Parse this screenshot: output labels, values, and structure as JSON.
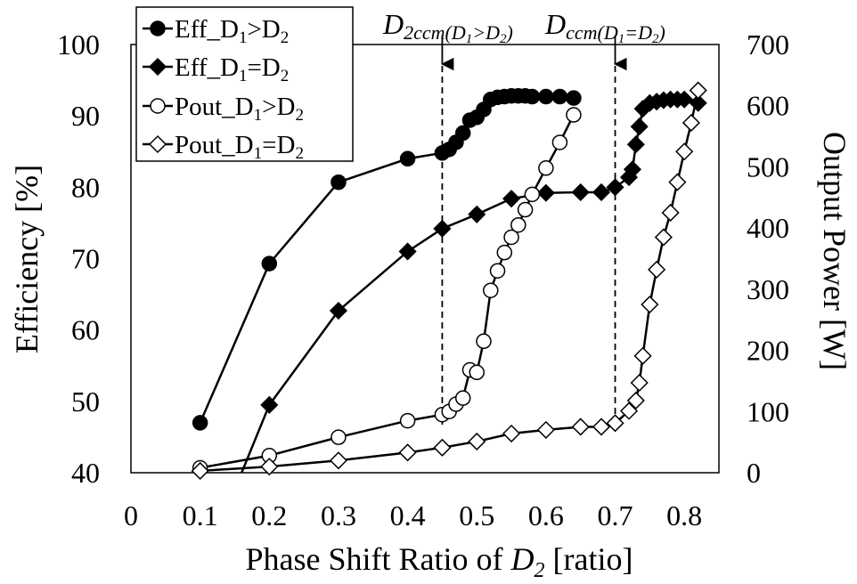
{
  "chart_data": {
    "type": "line",
    "xlabel": {
      "text": "Phase Shift Ratio of ",
      "var": "D",
      "sub": "2",
      "tail": " [ratio]"
    },
    "ylabel_left": "Efficiency [%]",
    "ylabel_right": "Output Power [W]",
    "xlim": [
      0,
      0.85
    ],
    "ylim_left": [
      40,
      100
    ],
    "ylim_right": [
      0,
      700
    ],
    "x_ticks": [
      "0",
      "0.1",
      "0.2",
      "0.3",
      "0.4",
      "0.5",
      "0.6",
      "0.7",
      "0.8"
    ],
    "y_left_ticks": [
      "40",
      "50",
      "60",
      "70",
      "80",
      "90",
      "100"
    ],
    "y_right_ticks": [
      "0",
      "100",
      "200",
      "300",
      "400",
      "500",
      "600",
      "700"
    ],
    "grid": false,
    "legend_position": "top-left",
    "series": [
      {
        "name": {
          "pre": "Eff_D",
          "s1": "1",
          "mid": ">D",
          "s2": "2"
        },
        "axis": "left",
        "marker": "circle",
        "filled": true,
        "x": [
          0.1,
          0.2,
          0.3,
          0.4,
          0.45,
          0.46,
          0.47,
          0.48,
          0.49,
          0.5,
          0.51,
          0.52,
          0.53,
          0.54,
          0.55,
          0.56,
          0.57,
          0.58,
          0.6,
          0.62,
          0.64
        ],
        "values": [
          47,
          69.3,
          80.7,
          84,
          84.8,
          85.3,
          86.3,
          87.6,
          89.4,
          89.8,
          90.9,
          92.3,
          92.6,
          92.7,
          92.8,
          92.8,
          92.8,
          92.7,
          92.7,
          92.7,
          92.5
        ]
      },
      {
        "name": {
          "pre": "Eff_D",
          "s1": "1",
          "mid": "=D",
          "s2": "2"
        },
        "axis": "left",
        "marker": "diamond",
        "filled": true,
        "x": [
          0.16,
          0.2,
          0.3,
          0.4,
          0.45,
          0.5,
          0.55,
          0.6,
          0.65,
          0.68,
          0.7,
          0.72,
          0.725,
          0.73,
          0.735,
          0.74,
          0.75,
          0.76,
          0.77,
          0.78,
          0.79,
          0.8,
          0.82
        ],
        "values": [
          40,
          49.5,
          62.7,
          71,
          74.2,
          76.2,
          78.4,
          79.2,
          79.3,
          79.3,
          80,
          81.4,
          82.5,
          86,
          88.5,
          91,
          91.8,
          92,
          92.2,
          92.3,
          92.3,
          92.3,
          91.8
        ]
      },
      {
        "name": {
          "pre": "Pout_D",
          "s1": "1",
          "mid": ">D",
          "s2": "2"
        },
        "axis": "right",
        "marker": "circle",
        "filled": false,
        "x": [
          0.1,
          0.2,
          0.3,
          0.4,
          0.45,
          0.46,
          0.47,
          0.48,
          0.49,
          0.5,
          0.51,
          0.52,
          0.53,
          0.54,
          0.55,
          0.56,
          0.57,
          0.58,
          0.6,
          0.62,
          0.64
        ],
        "values": [
          8,
          28,
          58,
          85,
          95,
          100,
          112,
          122,
          168,
          164,
          215,
          298,
          330,
          360,
          385,
          405,
          430,
          455,
          498,
          540,
          585
        ]
      },
      {
        "name": {
          "pre": "Pout_D",
          "s1": "1",
          "mid": "=D",
          "s2": "2"
        },
        "axis": "right",
        "marker": "diamond",
        "filled": false,
        "x": [
          0.1,
          0.2,
          0.3,
          0.4,
          0.45,
          0.5,
          0.55,
          0.6,
          0.65,
          0.68,
          0.7,
          0.72,
          0.73,
          0.735,
          0.74,
          0.75,
          0.76,
          0.77,
          0.78,
          0.79,
          0.8,
          0.81,
          0.82
        ],
        "values": [
          3,
          10,
          20,
          33,
          41,
          51,
          64,
          70,
          75,
          75,
          81,
          101,
          118,
          147,
          191,
          275,
          332,
          385,
          425,
          475,
          525,
          572,
          625
        ]
      }
    ],
    "annotations": [
      {
        "x": 0.45,
        "main": "D",
        "sub": "2ccm(D",
        "sub2": "1",
        "sub3": ">D",
        "sub4": "2",
        "sub5": ")"
      },
      {
        "x": 0.7,
        "main": "D",
        "sub": "ccm(D",
        "sub2": "1",
        "sub3": "=D",
        "sub4": "2",
        "sub5": ")"
      }
    ]
  }
}
